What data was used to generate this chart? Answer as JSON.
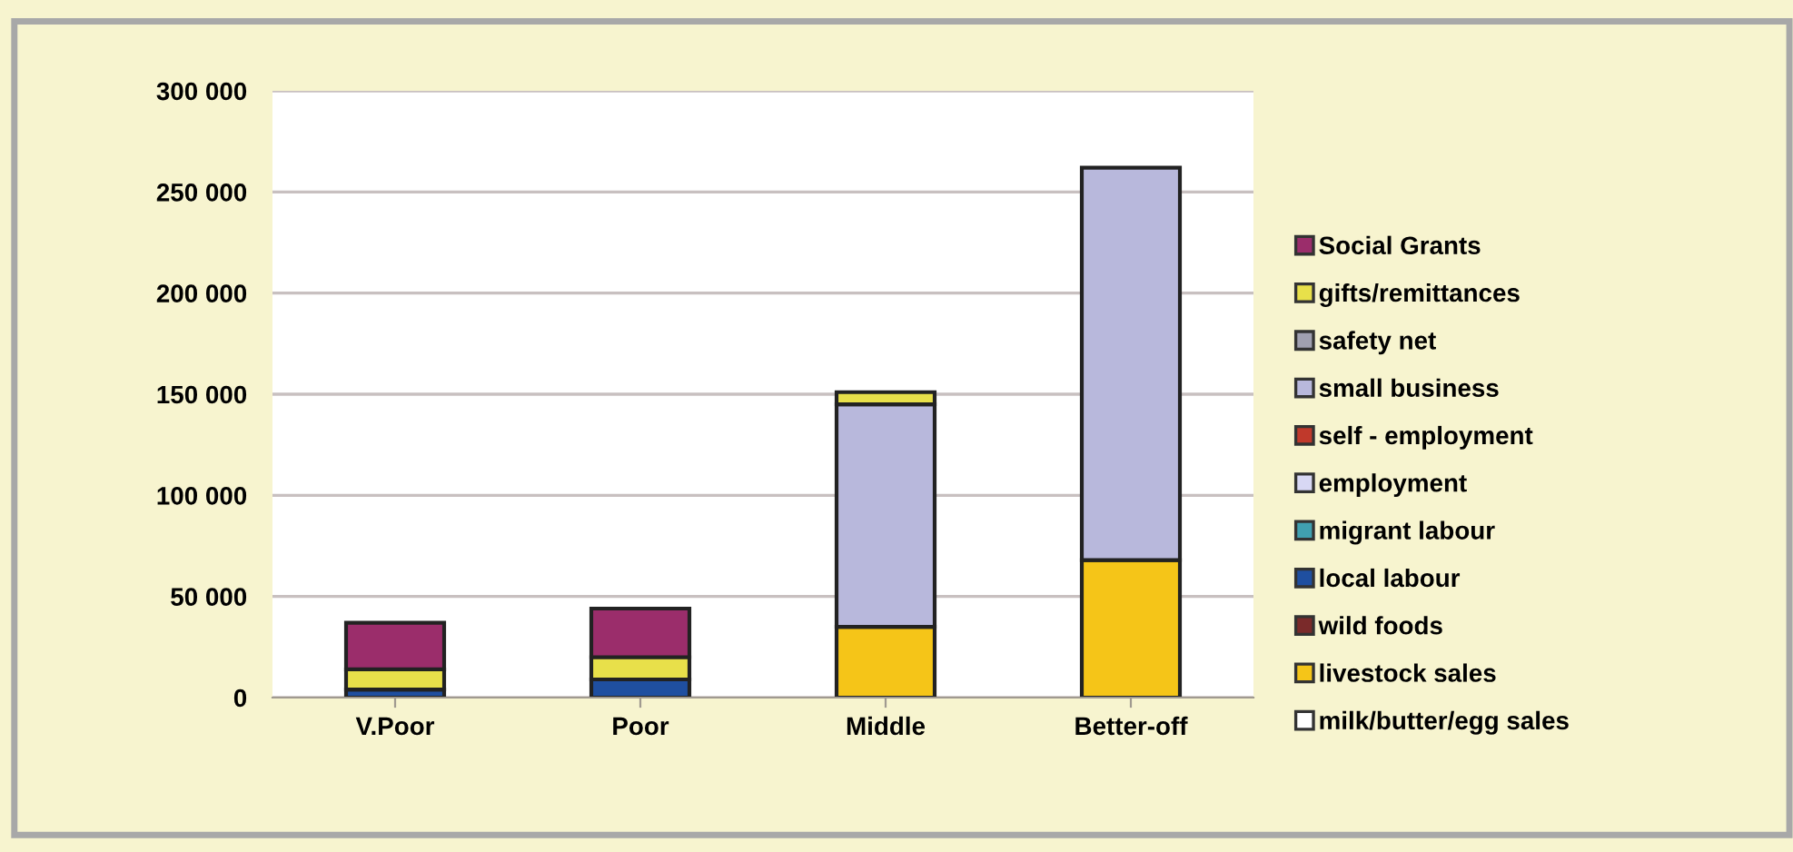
{
  "chart_data": {
    "type": "bar",
    "stacked": true,
    "categories": [
      "V.Poor",
      "Poor",
      "Middle",
      "Better-off"
    ],
    "series": [
      {
        "name": "milk/butter/egg sales",
        "color": "#ffffff",
        "values": [
          0,
          0,
          0,
          0
        ]
      },
      {
        "name": "livestock sales",
        "color": "#f5c518",
        "values": [
          0,
          0,
          35000,
          68000
        ]
      },
      {
        "name": "wild foods",
        "color": "#7a2a2a",
        "values": [
          0,
          0,
          0,
          0
        ]
      },
      {
        "name": "local labour",
        "color": "#1f4fa0",
        "values": [
          4000,
          9000,
          0,
          0
        ]
      },
      {
        "name": "migrant labour",
        "color": "#40a0b0",
        "values": [
          0,
          0,
          0,
          0
        ]
      },
      {
        "name": "employment",
        "color": "#d8d8f4",
        "values": [
          0,
          0,
          0,
          0
        ]
      },
      {
        "name": "self - employment",
        "color": "#c0392b",
        "values": [
          0,
          0,
          0,
          0
        ]
      },
      {
        "name": "small business",
        "color": "#b8b8dc",
        "values": [
          0,
          0,
          110000,
          194000
        ]
      },
      {
        "name": "safety net",
        "color": "#a0a0b0",
        "values": [
          0,
          0,
          0,
          0
        ]
      },
      {
        "name": "gifts/remittances",
        "color": "#e8e04a",
        "values": [
          10000,
          11000,
          6000,
          0
        ]
      },
      {
        "name": "Social Grants",
        "color": "#9b2d6b",
        "values": [
          23000,
          24000,
          0,
          0
        ]
      }
    ],
    "ylim": [
      0,
      300000
    ],
    "yticks": [
      {
        "value": 0,
        "label": "0"
      },
      {
        "value": 50000,
        "label": "50 000"
      },
      {
        "value": 100000,
        "label": "100 000"
      },
      {
        "value": 150000,
        "label": "150 000"
      },
      {
        "value": 200000,
        "label": "200 000"
      },
      {
        "value": 250000,
        "label": "250 000"
      },
      {
        "value": 300000,
        "label": "300 000"
      }
    ],
    "grid": "y",
    "legend": "right"
  }
}
